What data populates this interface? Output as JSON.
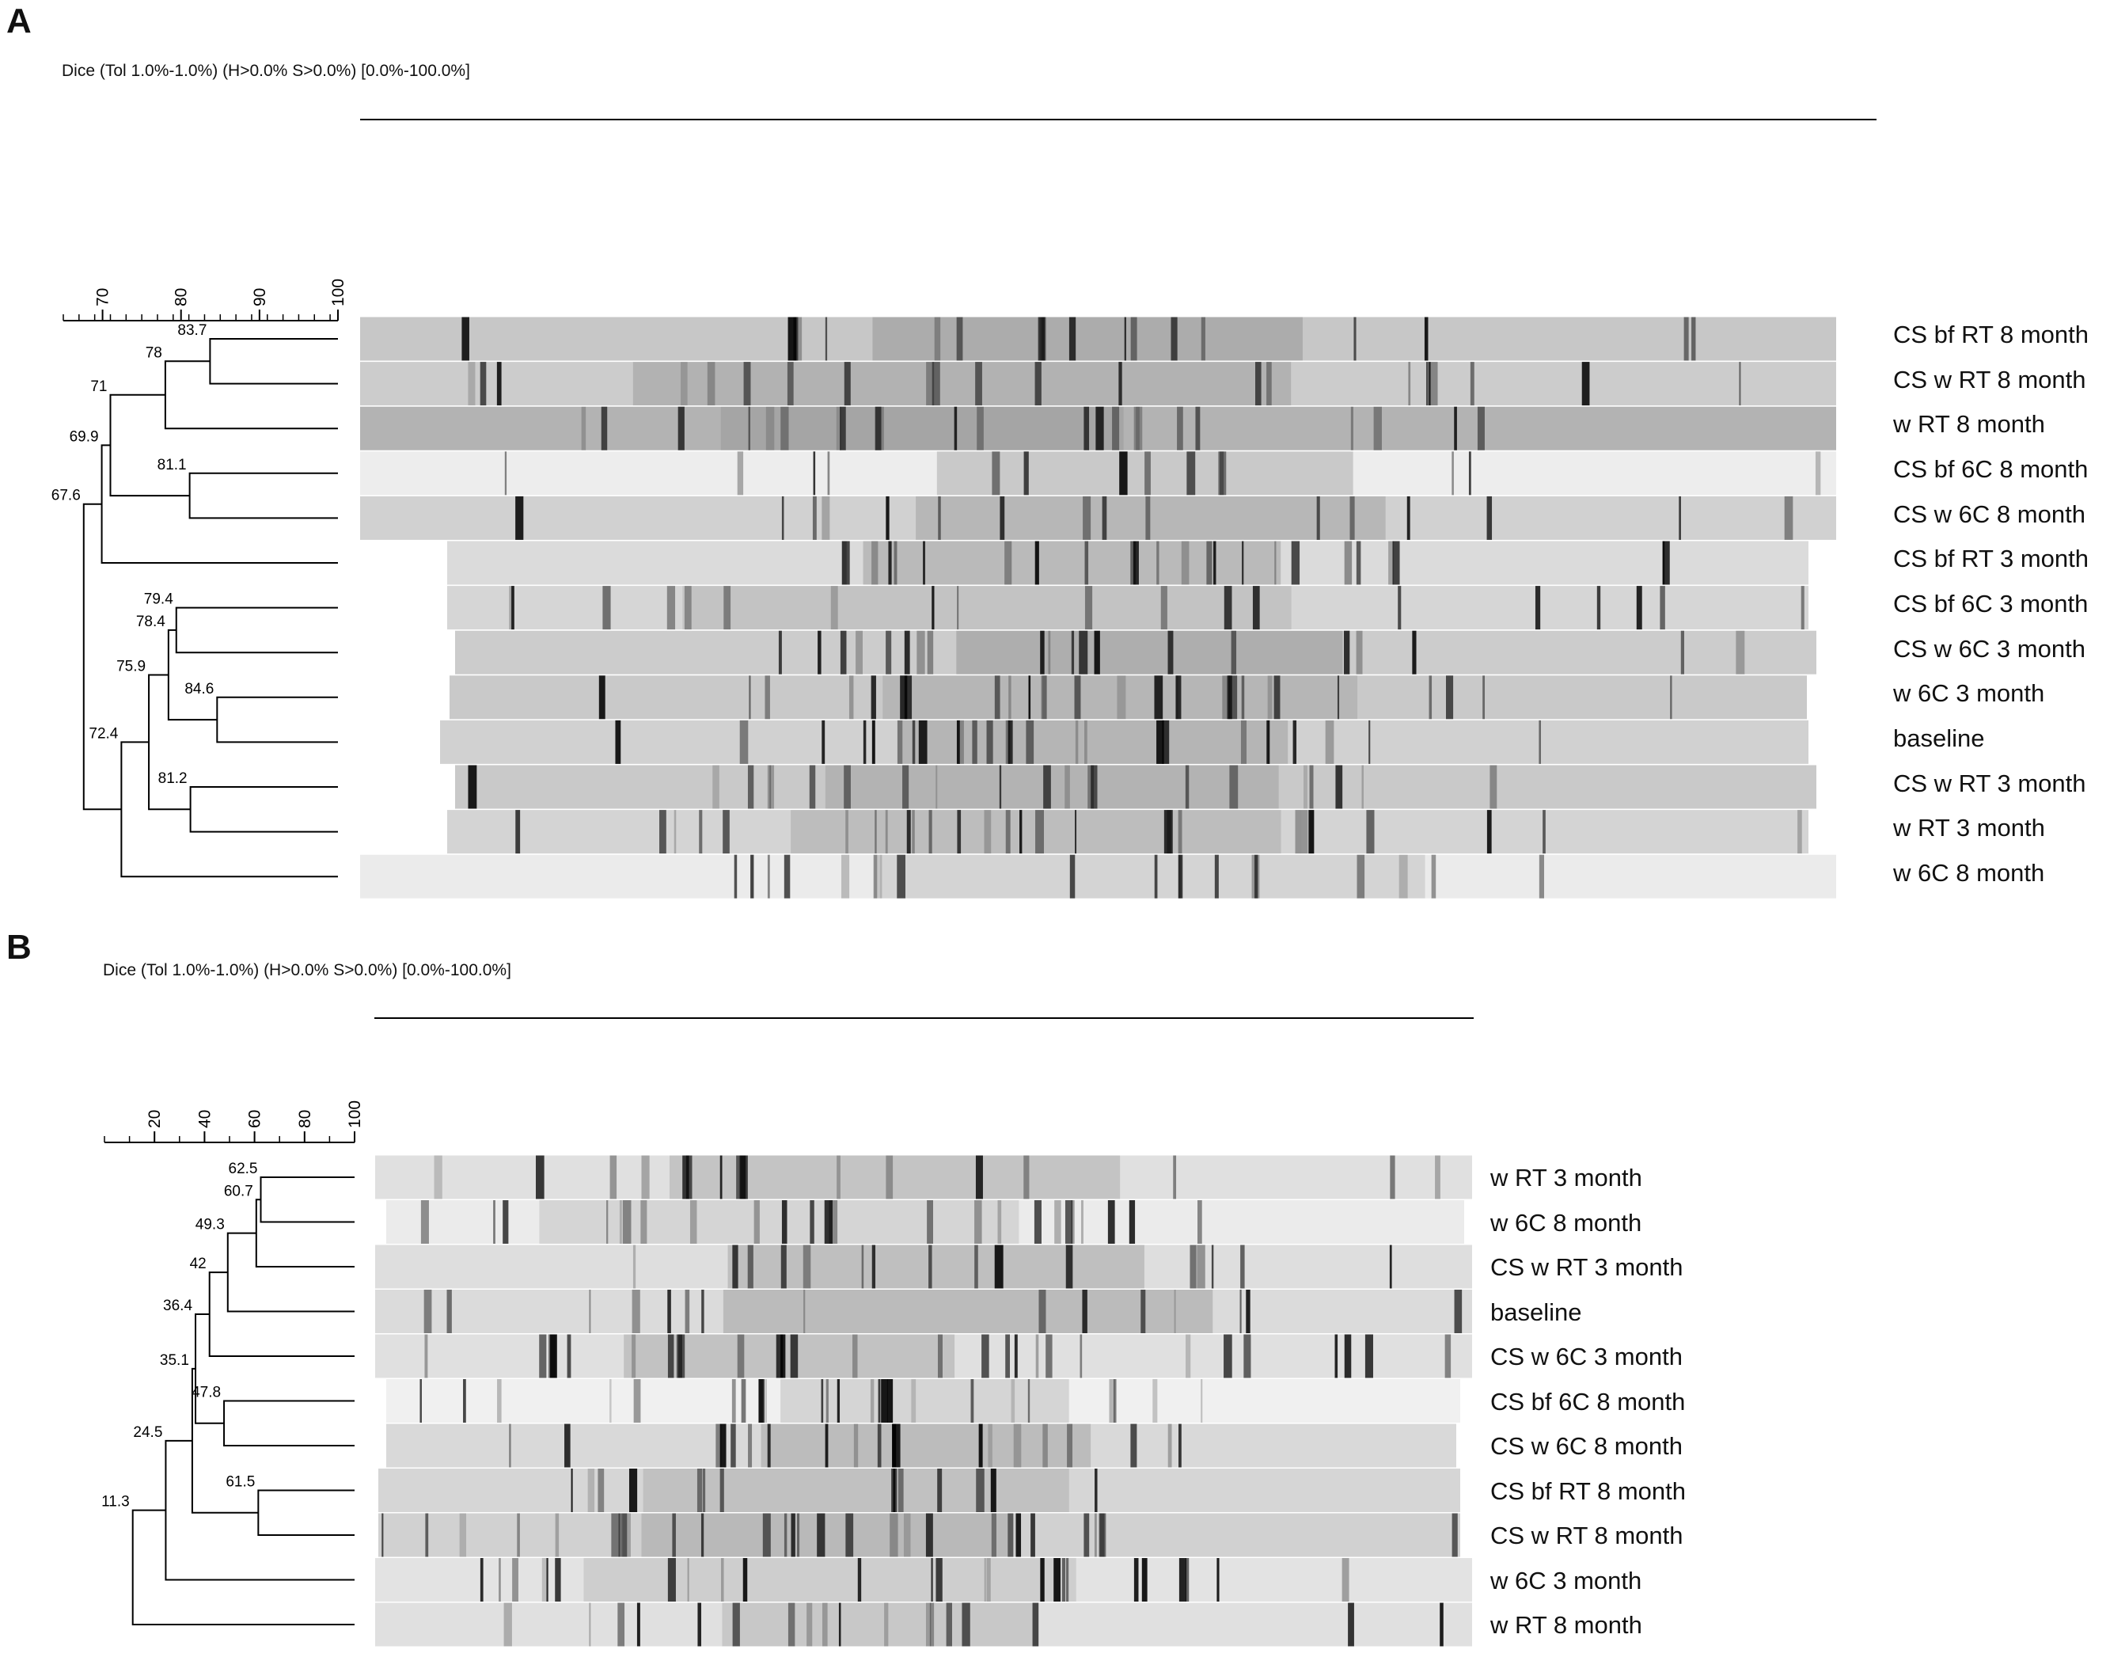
{
  "panels": [
    {
      "letter": "A",
      "method": "Dice (Tol 1.0%-1.0%) (H>0.0% S>0.0%) [0.0%-100.0%]",
      "scale": {
        "min": 65,
        "max": 100,
        "ticks": [
          70,
          80,
          90,
          100
        ],
        "minor_step": 2
      },
      "lanes": [
        "CS bf RT 8 month",
        "CS w RT 8 month",
        "w RT 8 month",
        "CS bf 6C 8 month",
        "CS w 6C 8 month",
        "CS bf RT 3 month",
        "CS bf 6C 3 month",
        "CS w 6C 3 month",
        "w 6C 3 month",
        "baseline",
        "CS w RT 3 month",
        "w RT 3 month",
        "w 6C 8 month"
      ],
      "nodes": [
        {
          "sim": 83.7,
          "label": "83.7",
          "a": "L0",
          "b": "L1"
        },
        {
          "sim": 78,
          "label": "78",
          "a": "N0",
          "b": "L2"
        },
        {
          "sim": 81.1,
          "label": "81.1",
          "a": "L3",
          "b": "L4"
        },
        {
          "sim": 71,
          "label": "71",
          "a": "N1",
          "b": "N2"
        },
        {
          "sim": 69.9,
          "label": "69.9",
          "a": "N3",
          "b": "L5"
        },
        {
          "sim": 79.4,
          "label": "79.4",
          "a": "L6",
          "b": "L7"
        },
        {
          "sim": 84.6,
          "label": "84.6",
          "a": "L8",
          "b": "L9"
        },
        {
          "sim": 78.4,
          "label": "78.4",
          "a": "N5",
          "b": "N6"
        },
        {
          "sim": 81.2,
          "label": "81.2",
          "a": "L10",
          "b": "L11"
        },
        {
          "sim": 75.9,
          "label": "75.9",
          "a": "N7",
          "b": "N8"
        },
        {
          "sim": 72.4,
          "label": "72.4",
          "a": "N9",
          "b": "L12"
        },
        {
          "sim": 67.6,
          "label": "67.6",
          "a": "N4",
          "b": "N10"
        }
      ]
    },
    {
      "letter": "B",
      "method": "Dice (Tol 1.0%-1.0%) (H>0.0% S>0.0%) [0.0%-100.0%]",
      "scale": {
        "min": 0,
        "max": 100,
        "ticks": [
          20,
          40,
          60,
          80,
          100
        ],
        "minor_step": 10
      },
      "lanes": [
        "w RT 3 month",
        "w 6C 8 month",
        "CS w RT 3 month",
        "baseline",
        "CS w 6C 3 month",
        "CS bf 6C 8 month",
        "CS w 6C 8 month",
        "CS bf RT 8 month",
        "CS w RT 8 month",
        "w 6C 3 month",
        "w RT 8 month"
      ],
      "nodes": [
        {
          "sim": 62.5,
          "label": "62.5",
          "a": "L0",
          "b": "L1"
        },
        {
          "sim": 60.7,
          "label": "60.7",
          "a": "N0",
          "b": "L2"
        },
        {
          "sim": 49.3,
          "label": "49.3",
          "a": "N1",
          "b": "L3"
        },
        {
          "sim": 42,
          "label": "42",
          "a": "N2",
          "b": "L4"
        },
        {
          "sim": 47.8,
          "label": "47.8",
          "a": "L5",
          "b": "L6"
        },
        {
          "sim": 36.4,
          "label": "36.4",
          "a": "N3",
          "b": "N4"
        },
        {
          "sim": 61.5,
          "label": "61.5",
          "a": "L7",
          "b": "L8"
        },
        {
          "sim": 35.1,
          "label": "35.1",
          "a": "N5",
          "b": "N6"
        },
        {
          "sim": 24.5,
          "label": "24.5",
          "a": "N7",
          "b": "L9"
        },
        {
          "sim": 11.3,
          "label": "11.3",
          "a": "N8",
          "b": "L10"
        }
      ]
    }
  ]
}
